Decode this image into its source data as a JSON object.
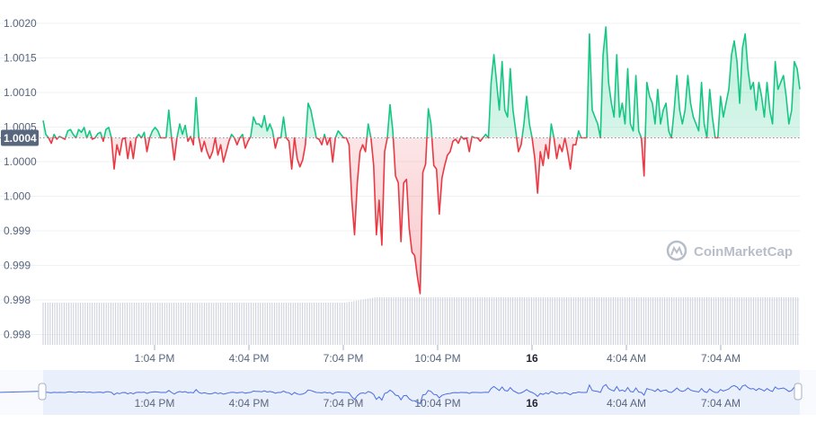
{
  "chart_data": {
    "type": "line",
    "price_ticks": [
      "1.0020",
      "1.0015",
      "1.0010",
      "1.0005",
      "1.0000",
      "1.000",
      "0.999",
      "0.999",
      "0.998",
      "0.998"
    ],
    "x_tick_labels": [
      "1:04 PM",
      "4:04 PM",
      "7:04 PM",
      "10:04 PM",
      "16",
      "4:04 AM",
      "7:04 AM"
    ],
    "navigator_tick_labels": [
      "1:04 PM",
      "4:04 PM",
      "7:04 PM",
      "10:04 PM",
      "16",
      "4:04 AM",
      "7:04 AM"
    ],
    "bold_ticks": [
      "16"
    ],
    "baseline": {
      "value": 1.0004,
      "label": "1.0004"
    },
    "ylim": [
      0.99735,
      1.0022
    ],
    "colors": {
      "up": "#16c784",
      "down": "#ea3943",
      "navigator": "#4a6ee0",
      "volume": "#c9ced8",
      "grid": "#eff2f5"
    },
    "watermark": "CoinMarketCap",
    "series": [
      {
        "values": [
          1.00065,
          1.00045,
          1.0004,
          1.00032,
          1.00045,
          1.00038,
          1.00042,
          1.0004,
          1.00038,
          1.0005,
          1.00052,
          1.00045,
          1.0004,
          1.00052,
          1.00048,
          1.00055,
          1.0004,
          1.0005,
          1.00038,
          1.0004,
          1.00046,
          1.00048,
          1.00035,
          1.00052,
          1.00055,
          1.0004,
          0.99995,
          1.0003,
          1.00015,
          1.00038,
          1.0004,
          1.0001,
          1.00035,
          1.0001,
          1.0004,
          1.00045,
          1.0004,
          1.00048,
          1.0002,
          1.0004,
          1.0005,
          1.00055,
          1.0005,
          1.0004,
          1.0004,
          1.0004,
          1.0008,
          1.0004,
          1.00008,
          1.0004,
          1.0006,
          1.00045,
          1.00058,
          1.00035,
          1.00042,
          1.0003,
          1.00098,
          1.0004,
          1.0002,
          1.00035,
          1.0002,
          1.0001,
          1.0002,
          1.0004,
          1.00015,
          1.0003,
          1.00005,
          1.0002,
          1.00035,
          1.00045,
          1.0004,
          1.0003,
          1.0004,
          1.00045,
          1.00025,
          1.00035,
          1.00042,
          1.0007,
          1.0006,
          1.0006,
          1.00055,
          1.00072,
          1.0005,
          1.0006,
          1.0005,
          1.00025,
          1.0004,
          1.0004,
          1.0007,
          1.0004,
          1.00035,
          0.99995,
          1.0004,
          1.0001,
          0.99998,
          1.00008,
          1.0003,
          1.0009,
          1.0008,
          1.0006,
          1.0004,
          1.00038,
          1.0003,
          1.00045,
          1.0003,
          1.0004,
          1.00005,
          1.0004,
          1.0005,
          1.00045,
          1.0004,
          1.0004,
          1.0003,
          0.9995,
          0.999,
          0.99975,
          1.0002,
          1.0003,
          1.0002,
          1.0006,
          1.0004,
          1.0,
          0.999,
          0.9995,
          0.99885,
          1.0002,
          1.0004,
          1.00088,
          1.0005,
          0.99985,
          0.99975,
          0.9989,
          0.99975,
          0.9998,
          0.9991,
          0.99875,
          0.9987,
          0.9984,
          0.99815,
          0.9999,
          1.00002,
          1.00082,
          1.0006,
          1.0,
          0.99995,
          0.9993,
          0.99982,
          1.0,
          1.00015,
          1.0002,
          1.00035,
          1.00038,
          1.00032,
          1.00042,
          1.00038,
          1.0004,
          1.0002,
          1.00042,
          1.0004,
          1.0004,
          1.00035,
          1.0004,
          1.00045,
          1.0004,
          1.0012,
          1.0016,
          1.0012,
          1.0008,
          1.0015,
          1.0008,
          1.0007,
          1.0014,
          1.0008,
          1.0005,
          1.0002,
          1.0003,
          1.0006,
          1.001,
          1.0006,
          1.0004,
          1.0001,
          0.9996,
          1.0002,
          1.0,
          1.0003,
          1.0001,
          1.0006,
          1.0004,
          1.0001,
          1.0003,
          1.0002,
          1.0004,
          1.0002,
          0.99995,
          1.0003,
          1.0003,
          1.0005,
          1.0004,
          1.0004,
          1.0004,
          1.0019,
          1.0008,
          1.0007,
          1.0006,
          1.0004,
          1.0016,
          1.002,
          1.0012,
          1.0009,
          1.0007,
          1.0016,
          1.0007,
          1.0009,
          1.0006,
          1.0014,
          1.0006,
          1.0005,
          1.0013,
          1.0005,
          1.0004,
          0.99985,
          1.0012,
          1.001,
          1.0009,
          1.0006,
          1.0011,
          1.0006,
          1.0008,
          1.0009,
          1.0005,
          1.0004,
          1.0008,
          1.0013,
          1.0008,
          1.0006,
          1.0008,
          1.0013,
          1.0009,
          1.0007,
          1.0006,
          1.0005,
          1.0012,
          1.0006,
          1.0004,
          1.0011,
          1.0007,
          1.0004,
          1.0004,
          1.001,
          1.0007,
          1.0009,
          1.0011,
          1.0016,
          1.0018,
          1.0015,
          1.0009,
          1.0017,
          1.0019,
          1.0014,
          1.0011,
          1.0012,
          1.0008,
          1.0012,
          1.001,
          1.0007,
          1.0012,
          1.0008,
          1.0006,
          1.0015,
          1.0011,
          1.0012,
          1.0013,
          1.001,
          1.0006,
          1.0008,
          1.0015,
          1.0014,
          1.0011
        ]
      }
    ]
  }
}
